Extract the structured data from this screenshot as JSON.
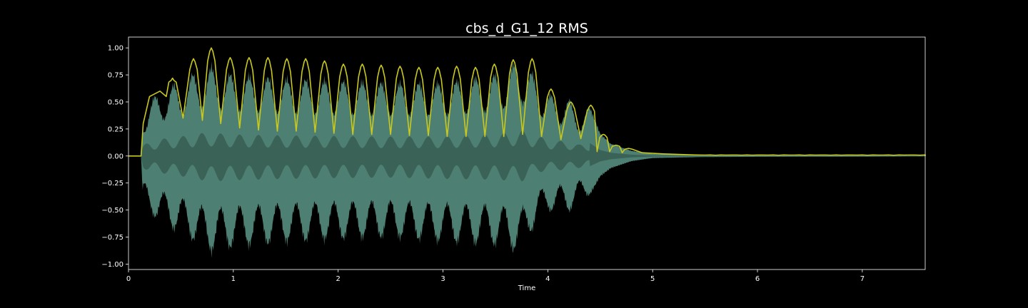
{
  "chart_data": {
    "type": "line",
    "title": "cbs_d_G1_12 RMS",
    "xlabel": "Time",
    "ylabel": "",
    "xlim": [
      0,
      7.6
    ],
    "ylim": [
      -1.05,
      1.1
    ],
    "x_ticks": [
      0,
      1,
      2,
      3,
      4,
      5,
      6,
      7
    ],
    "x_tick_labels": [
      "0",
      "1",
      "2",
      "3",
      "4",
      "5",
      "6",
      "7"
    ],
    "y_ticks": [
      -1.0,
      -0.75,
      -0.5,
      -0.25,
      0.0,
      0.25,
      0.5,
      0.75,
      1.0
    ],
    "y_tick_labels": [
      "−1.00",
      "−0.75",
      "−0.50",
      "−0.25",
      "0.00",
      "0.25",
      "0.50",
      "0.75",
      "1.00"
    ],
    "grid": false,
    "colors": {
      "background": "#000000",
      "waveform": "#5a9686",
      "waveform_dark": "#3a5e54",
      "rms_line": "#c8c81e",
      "axes": "#ffffff"
    },
    "series": [
      {
        "kind": "waveform_envelope",
        "x": [
          0.0,
          0.12,
          0.14,
          0.2,
          0.3,
          0.42,
          0.5,
          0.6,
          0.7,
          0.8,
          0.9,
          1.0,
          1.5,
          2.0,
          2.5,
          3.0,
          3.5,
          3.75,
          3.9,
          4.0,
          4.1,
          4.2,
          4.3,
          4.4,
          4.5,
          4.6,
          4.8,
          5.0,
          5.5,
          6.0,
          7.0,
          7.6
        ],
        "upper": [
          0.0,
          0.0,
          0.38,
          0.55,
          0.62,
          0.7,
          0.72,
          0.8,
          0.85,
          0.88,
          0.82,
          0.8,
          0.76,
          0.74,
          0.72,
          0.72,
          0.8,
          0.95,
          0.75,
          0.62,
          0.56,
          0.56,
          0.42,
          0.48,
          0.22,
          0.12,
          0.05,
          0.02,
          0.01,
          0.008,
          0.006,
          0.004
        ],
        "lower": [
          0.0,
          0.0,
          -0.45,
          -0.58,
          -0.62,
          -0.72,
          -0.75,
          -0.82,
          -0.9,
          -0.95,
          -0.92,
          -0.9,
          -0.85,
          -0.82,
          -0.8,
          -0.85,
          -0.88,
          -0.95,
          -0.62,
          -0.55,
          -0.52,
          -0.55,
          -0.44,
          -0.38,
          -0.2,
          -0.12,
          -0.05,
          -0.02,
          -0.01,
          -0.008,
          -0.006,
          -0.004
        ]
      },
      {
        "kind": "rms_line",
        "peaks_x": [
          0.42,
          0.62,
          0.79,
          0.97,
          1.15,
          1.33,
          1.51,
          1.69,
          1.87,
          2.05,
          2.23,
          2.41,
          2.59,
          2.77,
          2.95,
          3.13,
          3.31,
          3.49,
          3.67,
          3.85,
          4.03,
          4.22,
          4.41,
          4.53,
          4.65,
          4.77
        ],
        "peaks_y": [
          0.72,
          0.9,
          1.0,
          0.91,
          0.91,
          0.91,
          0.9,
          0.9,
          0.88,
          0.85,
          0.85,
          0.84,
          0.83,
          0.82,
          0.82,
          0.83,
          0.82,
          0.85,
          0.89,
          0.9,
          0.62,
          0.5,
          0.47,
          0.2,
          0.1,
          0.07
        ],
        "troughs_y": [
          0.52,
          0.35,
          0.33,
          0.3,
          0.26,
          0.24,
          0.23,
          0.23,
          0.22,
          0.21,
          0.2,
          0.2,
          0.2,
          0.19,
          0.19,
          0.18,
          0.18,
          0.18,
          0.18,
          0.2,
          0.18,
          0.15,
          0.16,
          0.04,
          0.04,
          0.03
        ]
      }
    ]
  }
}
